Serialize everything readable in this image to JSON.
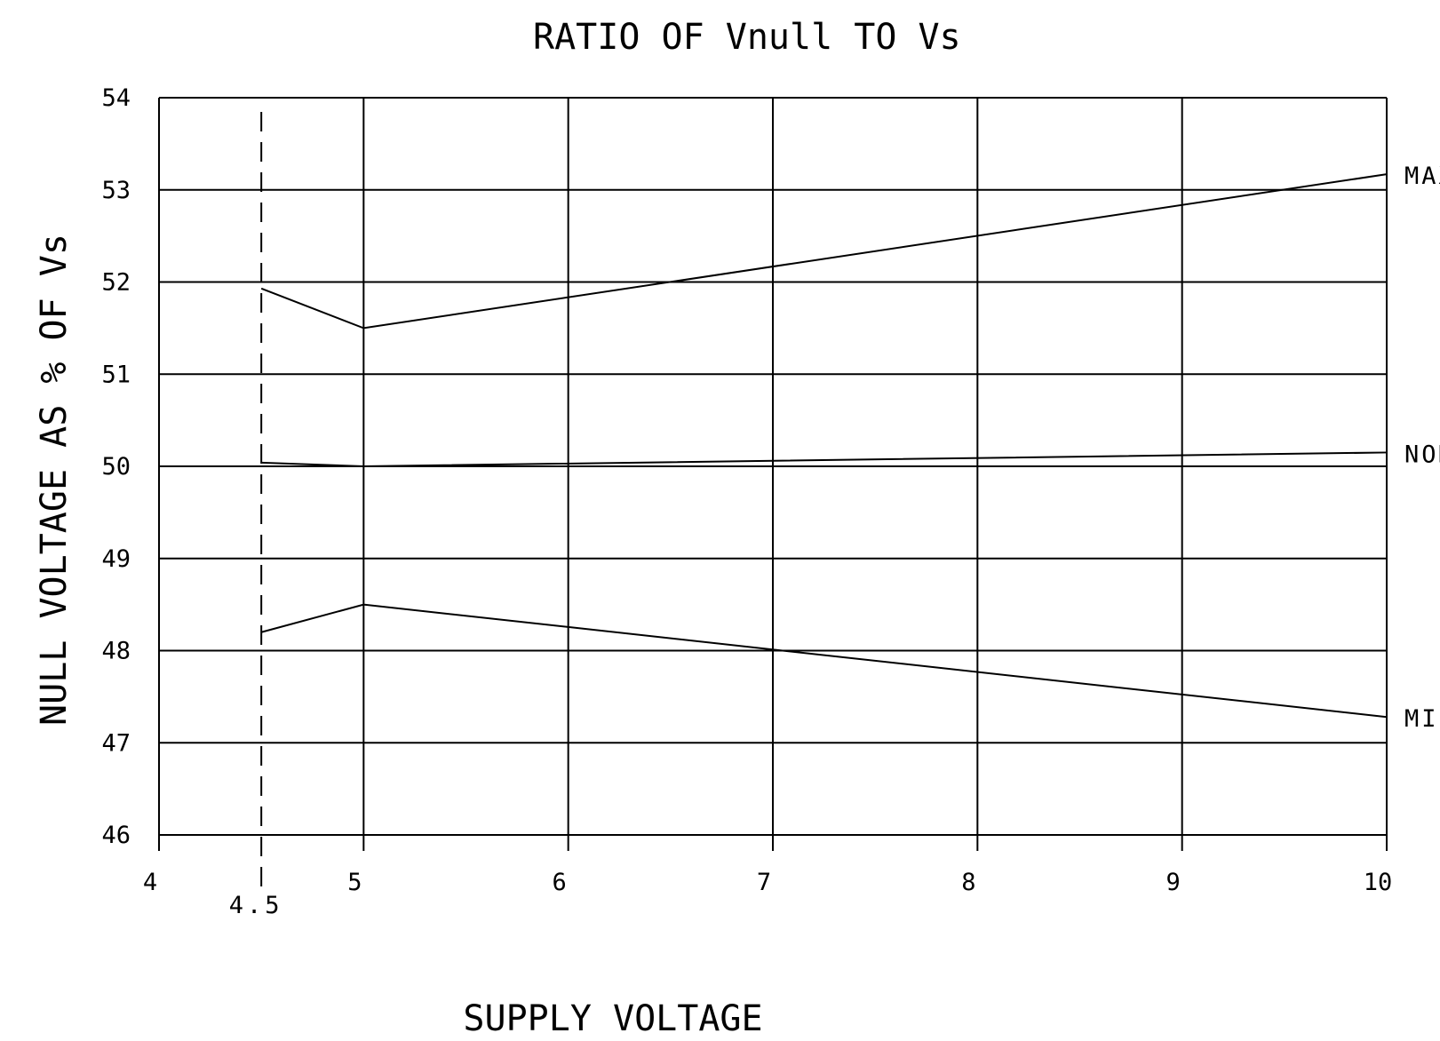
{
  "chart_data": {
    "type": "line",
    "title": "RATIO OF Vnull TO Vs",
    "xlabel": "SUPPLY VOLTAGE",
    "ylabel": "NULL VOLTAGE AS % OF Vs",
    "xlim": [
      4,
      10
    ],
    "ylim": [
      46,
      54
    ],
    "x_ticks": [
      4,
      5,
      6,
      7,
      8,
      9,
      10
    ],
    "y_ticks": [
      46,
      47,
      48,
      49,
      50,
      51,
      52,
      53,
      54
    ],
    "grid": true,
    "reference_line": {
      "x": 4.5,
      "label": "4.5",
      "style": "dashed"
    },
    "series": [
      {
        "name": "MAX",
        "x": [
          4.5,
          5,
          10
        ],
        "y": [
          51.93,
          51.5,
          53.17
        ]
      },
      {
        "name": "NOM",
        "x": [
          4.5,
          5,
          10
        ],
        "y": [
          50.04,
          50.0,
          50.15
        ]
      },
      {
        "name": "MIN",
        "x": [
          4.5,
          5,
          10
        ],
        "y": [
          48.2,
          48.5,
          47.28
        ]
      }
    ]
  }
}
